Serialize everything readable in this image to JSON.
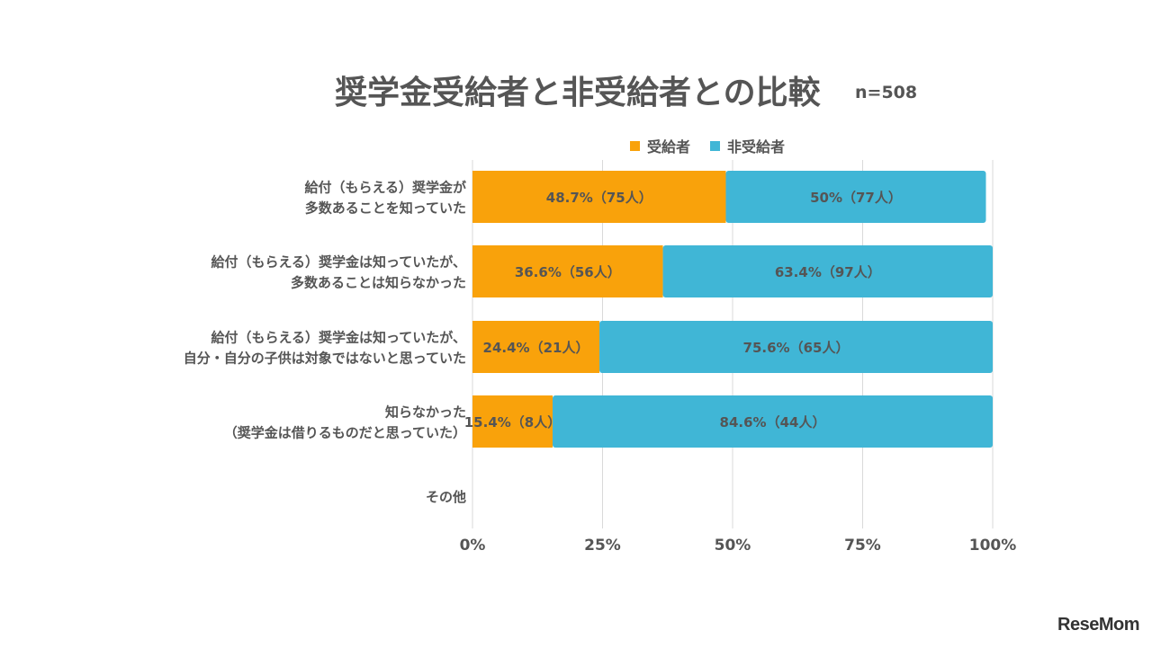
{
  "header": {
    "title": "奨学金受給者と非受給者との比較",
    "n": "n=508"
  },
  "legend": [
    {
      "name": "受給者",
      "color": "#F9A20B"
    },
    {
      "name": "非受給者",
      "color": "#40B6D6"
    }
  ],
  "watermark": "ReseMom",
  "chart_data": {
    "type": "bar",
    "orientation": "horizontal",
    "stacked": true,
    "categories": [
      [
        "給付（もらえる）奨学金が",
        "多数あることを知っていた"
      ],
      [
        "給付（もらえる）奨学金は知っていたが、",
        "多数あることは知らなかった"
      ],
      [
        "給付（もらえる）奨学金は知っていたが、",
        "自分・自分の子供は対象ではないと思っていた"
      ],
      [
        "知らなかった",
        "（奨学金は借りるものだと思っていた）"
      ],
      [
        "その他"
      ]
    ],
    "series": [
      {
        "name": "受給者",
        "color": "#F9A20B",
        "values": [
          48.7,
          36.6,
          24.4,
          15.4,
          null
        ],
        "labels": [
          "48.7%（75人）",
          "36.6%（56人）",
          "24.4%（21人）",
          "15.4%（8人）",
          ""
        ]
      },
      {
        "name": "非受給者",
        "color": "#40B6D6",
        "values": [
          50,
          63.4,
          75.6,
          84.6,
          null
        ],
        "labels": [
          "50%（77人）",
          "63.4%（97人）",
          "75.6%（65人）",
          "84.6%（44人）",
          ""
        ]
      }
    ],
    "xticks": [
      "0%",
      "25%",
      "50%",
      "75%",
      "100%"
    ],
    "xlim": [
      0,
      100
    ],
    "grid": true,
    "legend_position": "top"
  }
}
